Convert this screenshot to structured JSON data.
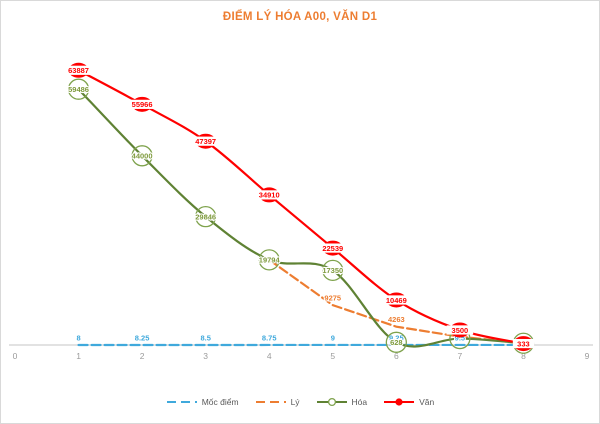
{
  "title": "ĐIỂM LÝ HÓA A00, VĂN D1",
  "colors": {
    "title": "#ED7D31",
    "axis_line": "#D9D9D9",
    "tick_label": "#9B9B9B",
    "legend_text": "#595959",
    "background": "#FFFFFF",
    "moc_diem": "#3FA9DC",
    "ly": "#ED7D31",
    "hoa": "#5F8234",
    "hoa_label": "#7E9A3C",
    "hoa_marker": "#7EA24C",
    "van": "#FF0000"
  },
  "chart_data": {
    "type": "line",
    "xlim": [
      0,
      9
    ],
    "ylim": [
      0,
      70000
    ],
    "grid": false,
    "x_ticks": [
      "0",
      "1",
      "2",
      "3",
      "4",
      "5",
      "6",
      "7",
      "8",
      "9"
    ],
    "legend_position": "bottom",
    "series": [
      {
        "name": "Mốc điểm",
        "color_key": "moc_diem",
        "style": "dashed",
        "marker": "none",
        "smooth": false,
        "x": [
          1,
          2,
          3,
          4,
          5,
          6,
          7,
          8
        ],
        "values": [
          8,
          8.25,
          8.5,
          8.75,
          9,
          9.25,
          9.5,
          9.75
        ],
        "labels": [
          "8",
          "8.25",
          "8.5",
          "8.75",
          "9",
          "9.25",
          "9.5",
          ""
        ]
      },
      {
        "name": "Lý",
        "color_key": "ly",
        "style": "dashed",
        "marker": "none",
        "smooth": false,
        "x": [
          4,
          5,
          6,
          7,
          8
        ],
        "values": [
          19794,
          9275,
          4263,
          1935,
          400
        ],
        "labels": [
          "",
          "9275",
          "4263",
          "1935",
          ""
        ]
      },
      {
        "name": "Hóa",
        "color_key": "hoa",
        "style": "solid",
        "marker": "open-circle",
        "smooth": true,
        "x": [
          1,
          2,
          3,
          4,
          5,
          6,
          7,
          8
        ],
        "values": [
          59486,
          44000,
          29846,
          19794,
          17350,
          628,
          1500,
          400
        ],
        "labels": [
          "59486",
          "44000",
          "29846",
          "19794",
          "17350",
          "628",
          "",
          ""
        ]
      },
      {
        "name": "Văn",
        "color_key": "van",
        "style": "solid",
        "marker": "filled-circle",
        "smooth": true,
        "x": [
          1,
          2,
          3,
          4,
          5,
          6,
          7,
          8
        ],
        "values": [
          63887,
          55966,
          47397,
          34910,
          22539,
          10469,
          3500,
          333
        ],
        "labels": [
          "63887",
          "55966",
          "47397",
          "34910",
          "22539",
          "10469",
          "3500",
          "333"
        ]
      }
    ]
  }
}
